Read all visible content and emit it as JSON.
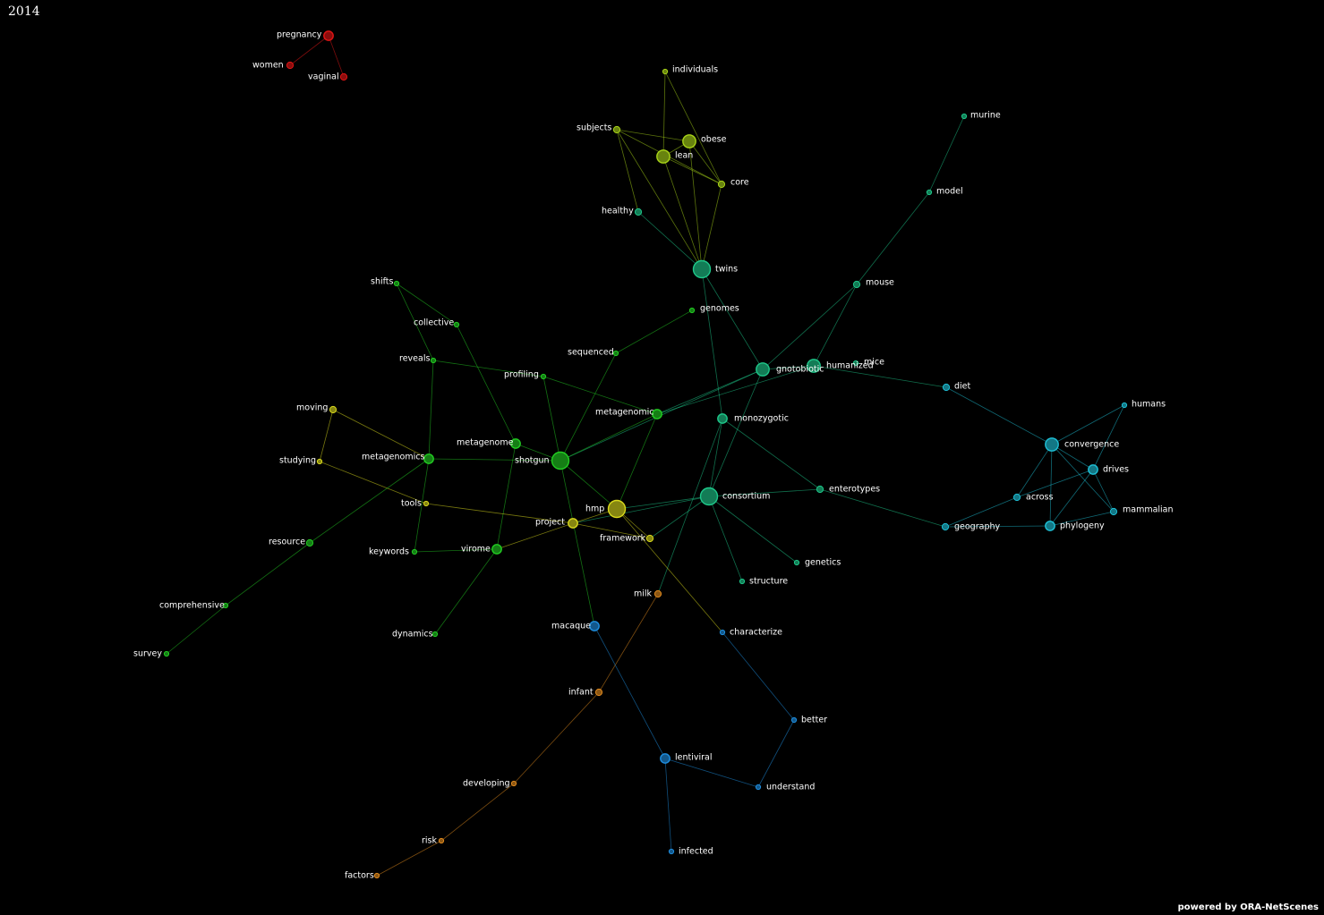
{
  "header": {
    "year": "2014"
  },
  "footer": {
    "credit": "powered by ORA-NetScenes"
  },
  "colors": {
    "red": "#e01515",
    "green": "#22cc22",
    "yellowgreen": "#a8d418",
    "yellow": "#d8d81c",
    "teal": "#1ec88a",
    "cyan": "#1ec0d6",
    "blue": "#1e8ee0",
    "orange": "#e08a1e"
  },
  "network": {
    "nodes": [
      {
        "id": "pregnancy",
        "label": "pregnancy",
        "group": "red",
        "size": "m"
      },
      {
        "id": "women",
        "label": "women",
        "group": "red",
        "size": "s"
      },
      {
        "id": "vaginal",
        "label": "vaginal",
        "group": "red",
        "size": "s"
      },
      {
        "id": "individuals",
        "label": "individuals",
        "group": "yellowgreen",
        "size": "xs"
      },
      {
        "id": "subjects",
        "label": "subjects",
        "group": "yellowgreen",
        "size": "s"
      },
      {
        "id": "obese",
        "label": "obese",
        "group": "yellowgreen",
        "size": "l"
      },
      {
        "id": "lean",
        "label": "lean",
        "group": "yellowgreen",
        "size": "l"
      },
      {
        "id": "core",
        "label": "core",
        "group": "yellowgreen",
        "size": "s"
      },
      {
        "id": "healthy",
        "label": "healthy",
        "group": "teal",
        "size": "s"
      },
      {
        "id": "twins",
        "label": "twins",
        "group": "teal",
        "size": "xl"
      },
      {
        "id": "murine",
        "label": "murine",
        "group": "teal",
        "size": "xs"
      },
      {
        "id": "model",
        "label": "model",
        "group": "teal",
        "size": "xs"
      },
      {
        "id": "mouse",
        "label": "mouse",
        "group": "teal",
        "size": "s"
      },
      {
        "id": "genomes",
        "label": "genomes",
        "group": "green",
        "size": "xs"
      },
      {
        "id": "shifts",
        "label": "shifts",
        "group": "green",
        "size": "xs"
      },
      {
        "id": "collective",
        "label": "collective",
        "group": "green",
        "size": "xs"
      },
      {
        "id": "reveals",
        "label": "reveals",
        "group": "green",
        "size": "xs"
      },
      {
        "id": "sequenced",
        "label": "sequenced",
        "group": "green",
        "size": "xs"
      },
      {
        "id": "profiling",
        "label": "profiling",
        "group": "green",
        "size": "xs"
      },
      {
        "id": "gnotobiotic",
        "label": "gnotobiotic",
        "group": "teal",
        "size": "l"
      },
      {
        "id": "humanized",
        "label": "humanized",
        "group": "teal",
        "size": "l"
      },
      {
        "id": "mice",
        "label": "mice",
        "group": "teal",
        "size": "xs"
      },
      {
        "id": "diet",
        "label": "diet",
        "group": "cyan",
        "size": "s"
      },
      {
        "id": "humans",
        "label": "humans",
        "group": "cyan",
        "size": "xs"
      },
      {
        "id": "moving",
        "label": "moving",
        "group": "yellow",
        "size": "s"
      },
      {
        "id": "metagenomic",
        "label": "metagenomic",
        "group": "green",
        "size": "m"
      },
      {
        "id": "monozygotic",
        "label": "monozygotic",
        "group": "teal",
        "size": "m"
      },
      {
        "id": "convergence",
        "label": "convergence",
        "group": "cyan",
        "size": "l"
      },
      {
        "id": "drives",
        "label": "drives",
        "group": "cyan",
        "size": "m"
      },
      {
        "id": "metagenome",
        "label": "metagenome",
        "group": "green",
        "size": "m"
      },
      {
        "id": "metagenomics",
        "label": "metagenomics",
        "group": "green",
        "size": "m"
      },
      {
        "id": "studying",
        "label": "studying",
        "group": "yellow",
        "size": "xs"
      },
      {
        "id": "shotgun",
        "label": "shotgun",
        "group": "green",
        "size": "xl"
      },
      {
        "id": "enterotypes",
        "label": "enterotypes",
        "group": "teal",
        "size": "s"
      },
      {
        "id": "across",
        "label": "across",
        "group": "cyan",
        "size": "s"
      },
      {
        "id": "mammalian",
        "label": "mammalian",
        "group": "cyan",
        "size": "s"
      },
      {
        "id": "consortium",
        "label": "consortium",
        "group": "teal",
        "size": "xl"
      },
      {
        "id": "hmp",
        "label": "hmp",
        "group": "yellow",
        "size": "xl"
      },
      {
        "id": "tools",
        "label": "tools",
        "group": "yellow",
        "size": "xs"
      },
      {
        "id": "geography",
        "label": "geography",
        "group": "cyan",
        "size": "s"
      },
      {
        "id": "phylogeny",
        "label": "phylogeny",
        "group": "cyan",
        "size": "m"
      },
      {
        "id": "project",
        "label": "project",
        "group": "yellow",
        "size": "m"
      },
      {
        "id": "framework",
        "label": "framework",
        "group": "yellow",
        "size": "s"
      },
      {
        "id": "resource",
        "label": "resource",
        "group": "green",
        "size": "s"
      },
      {
        "id": "keywords",
        "label": "keywords",
        "group": "green",
        "size": "xs"
      },
      {
        "id": "virome",
        "label": "virome",
        "group": "green",
        "size": "m"
      },
      {
        "id": "genetics",
        "label": "genetics",
        "group": "teal",
        "size": "xs"
      },
      {
        "id": "structure",
        "label": "structure",
        "group": "teal",
        "size": "xs"
      },
      {
        "id": "milk",
        "label": "milk",
        "group": "orange",
        "size": "s"
      },
      {
        "id": "comprehensive",
        "label": "comprehensive",
        "group": "green",
        "size": "xs"
      },
      {
        "id": "macaque",
        "label": "macaque",
        "group": "blue",
        "size": "m"
      },
      {
        "id": "characterize",
        "label": "characterize",
        "group": "blue",
        "size": "xs"
      },
      {
        "id": "dynamics",
        "label": "dynamics",
        "group": "green",
        "size": "xs"
      },
      {
        "id": "survey",
        "label": "survey",
        "group": "green",
        "size": "xs"
      },
      {
        "id": "infant",
        "label": "infant",
        "group": "orange",
        "size": "s"
      },
      {
        "id": "better",
        "label": "better",
        "group": "blue",
        "size": "xs"
      },
      {
        "id": "lentiviral",
        "label": "lentiviral",
        "group": "blue",
        "size": "m"
      },
      {
        "id": "developing",
        "label": "developing",
        "group": "orange",
        "size": "xs"
      },
      {
        "id": "understand",
        "label": "understand",
        "group": "blue",
        "size": "xs"
      },
      {
        "id": "risk",
        "label": "risk",
        "group": "orange",
        "size": "xs"
      },
      {
        "id": "infected",
        "label": "infected",
        "group": "blue",
        "size": "xs"
      },
      {
        "id": "factors",
        "label": "factors",
        "group": "orange",
        "size": "xs"
      }
    ],
    "edges": [
      [
        "pregnancy",
        "women"
      ],
      [
        "pregnancy",
        "vaginal"
      ],
      [
        "individuals",
        "lean"
      ],
      [
        "individuals",
        "core"
      ],
      [
        "subjects",
        "obese"
      ],
      [
        "subjects",
        "core"
      ],
      [
        "subjects",
        "healthy"
      ],
      [
        "subjects",
        "twins"
      ],
      [
        "obese",
        "lean"
      ],
      [
        "obese",
        "twins"
      ],
      [
        "obese",
        "core"
      ],
      [
        "lean",
        "twins"
      ],
      [
        "lean",
        "core"
      ],
      [
        "core",
        "twins"
      ],
      [
        "healthy",
        "twins"
      ],
      [
        "twins",
        "gnotobiotic"
      ],
      [
        "twins",
        "monozygotic"
      ],
      [
        "murine",
        "model"
      ],
      [
        "model",
        "mouse"
      ],
      [
        "mouse",
        "gnotobiotic"
      ],
      [
        "mouse",
        "humanized"
      ],
      [
        "genomes",
        "sequenced"
      ],
      [
        "sequenced",
        "shotgun"
      ],
      [
        "shifts",
        "reveals"
      ],
      [
        "shifts",
        "collective"
      ],
      [
        "collective",
        "metagenome"
      ],
      [
        "reveals",
        "metagenomics"
      ],
      [
        "reveals",
        "profiling"
      ],
      [
        "profiling",
        "shotgun"
      ],
      [
        "profiling",
        "metagenomic"
      ],
      [
        "gnotobiotic",
        "humanized"
      ],
      [
        "gnotobiotic",
        "metagenomic"
      ],
      [
        "gnotobiotic",
        "consortium"
      ],
      [
        "gnotobiotic",
        "shotgun"
      ],
      [
        "humanized",
        "diet"
      ],
      [
        "humanized",
        "metagenomic"
      ],
      [
        "diet",
        "convergence"
      ],
      [
        "humans",
        "convergence"
      ],
      [
        "humans",
        "drives"
      ],
      [
        "convergence",
        "drives"
      ],
      [
        "convergence",
        "across"
      ],
      [
        "convergence",
        "phylogeny"
      ],
      [
        "convergence",
        "mammalian"
      ],
      [
        "drives",
        "across"
      ],
      [
        "drives",
        "phylogeny"
      ],
      [
        "drives",
        "mammalian"
      ],
      [
        "across",
        "geography"
      ],
      [
        "geography",
        "phylogeny"
      ],
      [
        "phylogeny",
        "mammalian"
      ],
      [
        "moving",
        "studying"
      ],
      [
        "moving",
        "metagenomics"
      ],
      [
        "studying",
        "tools"
      ],
      [
        "metagenomic",
        "shotgun"
      ],
      [
        "metagenomic",
        "hmp"
      ],
      [
        "monozygotic",
        "consortium"
      ],
      [
        "monozygotic",
        "enterotypes"
      ],
      [
        "monozygotic",
        "milk"
      ],
      [
        "metagenome",
        "shotgun"
      ],
      [
        "metagenome",
        "virome"
      ],
      [
        "metagenomics",
        "shotgun"
      ],
      [
        "metagenomics",
        "keywords"
      ],
      [
        "metagenomics",
        "resource"
      ],
      [
        "shotgun",
        "hmp"
      ],
      [
        "shotgun",
        "macaque"
      ],
      [
        "consortium",
        "enterotypes"
      ],
      [
        "consortium",
        "genetics"
      ],
      [
        "consortium",
        "structure"
      ],
      [
        "consortium",
        "hmp"
      ],
      [
        "consortium",
        "project"
      ],
      [
        "consortium",
        "framework"
      ],
      [
        "enterotypes",
        "geography"
      ],
      [
        "hmp",
        "project"
      ],
      [
        "hmp",
        "framework"
      ],
      [
        "hmp",
        "characterize"
      ],
      [
        "tools",
        "project"
      ],
      [
        "project",
        "virome"
      ],
      [
        "project",
        "framework"
      ],
      [
        "keywords",
        "virome"
      ],
      [
        "virome",
        "dynamics"
      ],
      [
        "resource",
        "comprehensive"
      ],
      [
        "comprehensive",
        "survey"
      ],
      [
        "milk",
        "infant"
      ],
      [
        "infant",
        "developing"
      ],
      [
        "developing",
        "risk"
      ],
      [
        "risk",
        "factors"
      ],
      [
        "macaque",
        "lentiviral"
      ],
      [
        "lentiviral",
        "understand"
      ],
      [
        "lentiviral",
        "infected"
      ],
      [
        "understand",
        "better"
      ],
      [
        "better",
        "characterize"
      ]
    ]
  }
}
